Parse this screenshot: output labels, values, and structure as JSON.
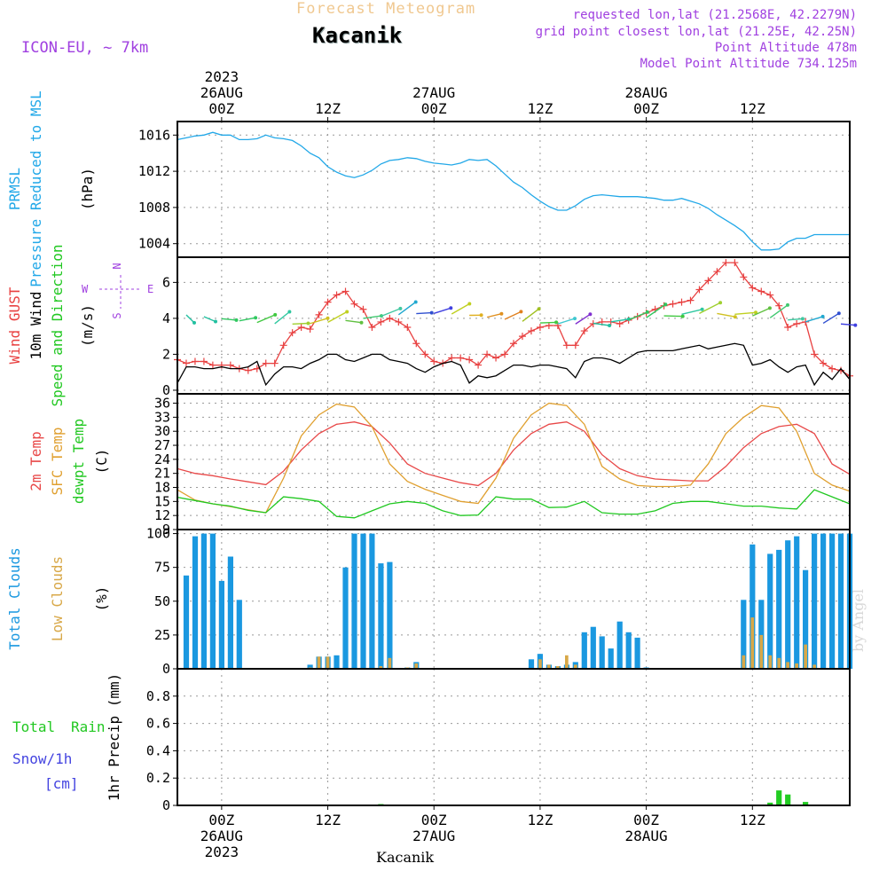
{
  "header": {
    "title": "Forecast Meteogram",
    "location": "Kacanik",
    "model": "ICON-EU, ~ 7km",
    "requested": "requested lon,lat (21.2568E, 42.2279N)",
    "grid": "grid point closest lon,lat (21.25E, 42.25N)",
    "point_alt": "Point Altitude 478m",
    "model_alt": "Model Point Altitude 734.125m",
    "watermark": "by Angel",
    "footer": "Kacanik",
    "colors": {
      "title": "#f0c080",
      "meta": "#a040e0",
      "location": "#000000"
    }
  },
  "time_axis": {
    "top_year": "2023",
    "tick_labels": [
      "00Z",
      "12Z",
      "00Z",
      "12Z",
      "00Z",
      "12Z"
    ],
    "tick_hours": [
      0,
      12,
      24,
      36,
      48,
      60
    ],
    "date_labels": [
      {
        "hour": 0,
        "text": "26AUG"
      },
      {
        "hour": 24,
        "text": "27AUG"
      },
      {
        "hour": 48,
        "text": "28AUG"
      }
    ],
    "hour_range": [
      -5,
      71
    ]
  },
  "panel_labels": {
    "pressure": [
      "PRMSL",
      "Pressure Reduced to MSL",
      "(hPa)"
    ],
    "wind": [
      "Wind GUST",
      "10m Wind",
      "Speed and Direction",
      "(m/s)"
    ],
    "compass": [
      "N",
      "W",
      "E",
      "S"
    ],
    "temp": [
      "2m Temp",
      "SFC Temp",
      "dewpt Temp",
      "(C)"
    ],
    "clouds": [
      "Total Clouds",
      "Low Clouds",
      "(%)"
    ],
    "precip": [
      "Total",
      "Rain",
      "Snow/1h",
      "[cm]",
      "1hr Precip (mm)"
    ]
  },
  "chart_data": [
    {
      "type": "line",
      "name": "pressure",
      "ylim": [
        1002.5,
        1017.5
      ],
      "yticks": [
        1004,
        1008,
        1012,
        1016
      ],
      "colors": [
        "#22a8e8"
      ],
      "series": [
        {
          "name": "PRMSL",
          "x": [
            -5,
            -4,
            -3,
            -2,
            -1,
            0,
            1,
            2,
            3,
            4,
            5,
            6,
            7,
            8,
            9,
            10,
            11,
            12,
            13,
            14,
            15,
            16,
            17,
            18,
            19,
            20,
            21,
            22,
            23,
            24,
            25,
            26,
            27,
            28,
            29,
            30,
            31,
            32,
            33,
            34,
            35,
            36,
            37,
            38,
            39,
            40,
            41,
            42,
            43,
            44,
            45,
            46,
            47,
            48,
            49,
            50,
            51,
            52,
            53,
            54,
            55,
            56,
            57,
            58,
            59,
            60,
            61,
            62,
            63,
            64,
            65,
            66,
            67,
            68,
            69,
            70,
            71
          ],
          "values": [
            1015.5,
            1015.7,
            1015.9,
            1016.0,
            1016.3,
            1016.0,
            1016.0,
            1015.5,
            1015.5,
            1015.6,
            1016.0,
            1015.7,
            1015.6,
            1015.4,
            1014.8,
            1014.0,
            1013.5,
            1012.5,
            1011.9,
            1011.5,
            1011.3,
            1011.6,
            1012.1,
            1012.8,
            1013.2,
            1013.3,
            1013.5,
            1013.4,
            1013.1,
            1012.9,
            1012.8,
            1012.7,
            1012.9,
            1013.3,
            1013.2,
            1013.3,
            1012.6,
            1011.7,
            1010.8,
            1010.2,
            1009.4,
            1008.7,
            1008.1,
            1007.7,
            1007.7,
            1008.2,
            1008.9,
            1009.3,
            1009.4,
            1009.3,
            1009.2,
            1009.2,
            1009.2,
            1009.1,
            1009.0,
            1008.8,
            1008.8,
            1009.0,
            1008.7,
            1008.4,
            1007.9,
            1007.2,
            1006.6,
            1006.0,
            1005.3,
            1004.2,
            1003.3,
            1003.3,
            1003.4,
            1004.2,
            1004.6,
            1004.6,
            1005.0,
            1005.0,
            1005.0,
            1005.0,
            1005.0
          ]
        }
      ]
    },
    {
      "type": "line",
      "name": "wind",
      "ylim": [
        -0.2,
        7.4
      ],
      "yticks": [
        0,
        2,
        4,
        6
      ],
      "colors": [
        "#e84040",
        "#000000"
      ],
      "series": [
        {
          "name": "Wind GUST",
          "x": [
            -5,
            -4,
            -3,
            -2,
            -1,
            0,
            1,
            2,
            3,
            4,
            5,
            6,
            7,
            8,
            9,
            10,
            11,
            12,
            13,
            14,
            15,
            16,
            17,
            18,
            19,
            20,
            21,
            22,
            23,
            24,
            25,
            26,
            27,
            28,
            29,
            30,
            31,
            32,
            33,
            34,
            35,
            36,
            37,
            38,
            39,
            40,
            41,
            42,
            43,
            44,
            45,
            46,
            47,
            48,
            49,
            50,
            51,
            52,
            53,
            54,
            55,
            56,
            57,
            58,
            59,
            60,
            61,
            62,
            63,
            64,
            65,
            66,
            67,
            68,
            69,
            70,
            71
          ],
          "values": [
            1.7,
            1.5,
            1.6,
            1.6,
            1.4,
            1.4,
            1.4,
            1.2,
            1.1,
            1.2,
            1.5,
            1.5,
            2.5,
            3.2,
            3.5,
            3.4,
            4.2,
            4.9,
            5.3,
            5.5,
            4.8,
            4.5,
            3.5,
            3.8,
            4.0,
            3.8,
            3.5,
            2.6,
            2.0,
            1.6,
            1.5,
            1.8,
            1.8,
            1.7,
            1.4,
            2.0,
            1.8,
            2.0,
            2.6,
            3.0,
            3.3,
            3.5,
            3.6,
            3.6,
            2.5,
            2.5,
            3.3,
            3.7,
            3.8,
            3.8,
            3.7,
            3.9,
            4.1,
            4.3,
            4.5,
            4.7,
            4.8,
            4.9,
            5.0,
            5.6,
            6.1,
            6.6,
            7.1,
            7.1,
            6.3,
            5.7,
            5.5,
            5.3,
            4.7,
            3.5,
            3.7,
            3.8,
            2.0,
            1.5,
            1.2,
            1.1,
            0.8
          ]
        },
        {
          "name": "10m Wind",
          "x": [
            -5,
            -4,
            -3,
            -2,
            -1,
            0,
            1,
            2,
            3,
            4,
            5,
            6,
            7,
            8,
            9,
            10,
            11,
            12,
            13,
            14,
            15,
            16,
            17,
            18,
            19,
            20,
            21,
            22,
            23,
            24,
            25,
            26,
            27,
            28,
            29,
            30,
            31,
            32,
            33,
            34,
            35,
            36,
            37,
            38,
            39,
            40,
            41,
            42,
            43,
            44,
            45,
            46,
            47,
            48,
            49,
            50,
            51,
            52,
            53,
            54,
            55,
            56,
            57,
            58,
            59,
            60,
            61,
            62,
            63,
            64,
            65,
            66,
            67,
            68,
            69,
            70,
            71
          ],
          "values": [
            0.4,
            1.3,
            1.3,
            1.2,
            1.2,
            1.3,
            1.2,
            1.2,
            1.3,
            1.6,
            0.3,
            0.9,
            1.3,
            1.3,
            1.2,
            1.5,
            1.7,
            2.0,
            2.0,
            1.7,
            1.6,
            1.8,
            2.0,
            2.0,
            1.7,
            1.6,
            1.5,
            1.2,
            1.0,
            1.3,
            1.5,
            1.6,
            1.4,
            0.4,
            0.8,
            0.7,
            0.8,
            1.1,
            1.4,
            1.4,
            1.3,
            1.4,
            1.4,
            1.3,
            1.2,
            0.7,
            1.6,
            1.8,
            1.8,
            1.7,
            1.5,
            1.8,
            2.1,
            2.2,
            2.2,
            2.2,
            2.2,
            2.3,
            2.4,
            2.5,
            2.3,
            2.4,
            2.5,
            2.6,
            2.5,
            1.4,
            1.5,
            1.7,
            1.3,
            1.0,
            1.3,
            1.4,
            0.3,
            1.0,
            0.6,
            1.2,
            0.6
          ]
        }
      ]
    },
    {
      "type": "line",
      "name": "temperature",
      "ylim": [
        9,
        38
      ],
      "yticks": [
        9,
        12,
        15,
        18,
        21,
        24,
        27,
        30,
        33,
        36
      ],
      "colors": [
        "#e84848",
        "#e0a030",
        "#20c820"
      ],
      "series": [
        {
          "name": "2m Temp",
          "x": [
            -5,
            -3,
            -1,
            1,
            3,
            5,
            7,
            9,
            11,
            13,
            15,
            17,
            19,
            21,
            23,
            25,
            27,
            29,
            31,
            33,
            35,
            37,
            39,
            41,
            43,
            45,
            47,
            49,
            51,
            53,
            55,
            57,
            59,
            61,
            63,
            65,
            67,
            69,
            71
          ],
          "values": [
            22.0,
            21.0,
            20.5,
            19.8,
            19.2,
            18.6,
            21.5,
            26.0,
            29.5,
            31.5,
            32.0,
            31.0,
            27.5,
            23.0,
            21.0,
            20.0,
            19.0,
            18.4,
            21.0,
            26.0,
            29.5,
            31.5,
            32.0,
            30.0,
            25.0,
            22.0,
            20.5,
            19.8,
            19.6,
            19.4,
            19.4,
            22.5,
            26.5,
            29.5,
            31.0,
            31.5,
            29.5,
            23.0,
            20.8
          ]
        },
        {
          "name": "SFC Temp",
          "x": [
            -5,
            -3,
            -1,
            1,
            3,
            5,
            7,
            9,
            11,
            13,
            15,
            17,
            19,
            21,
            23,
            25,
            27,
            29,
            31,
            33,
            35,
            37,
            39,
            41,
            43,
            45,
            47,
            49,
            51,
            53,
            55,
            57,
            59,
            61,
            63,
            65,
            67,
            69,
            71
          ],
          "values": [
            17.5,
            15.3,
            14.5,
            13.9,
            13.2,
            12.6,
            20.0,
            29.0,
            33.5,
            35.8,
            35.2,
            31.0,
            23.0,
            19.3,
            17.6,
            16.3,
            15.0,
            14.6,
            20.0,
            28.5,
            33.5,
            36.0,
            35.5,
            31.5,
            22.5,
            19.8,
            18.4,
            18.2,
            18.2,
            18.5,
            23.0,
            29.5,
            33.0,
            35.5,
            35.0,
            30.0,
            21.0,
            18.5,
            17.2
          ]
        },
        {
          "name": "dewpt Temp",
          "x": [
            -5,
            -3,
            -1,
            1,
            3,
            5,
            7,
            9,
            11,
            13,
            15,
            17,
            19,
            21,
            23,
            25,
            27,
            29,
            31,
            33,
            35,
            37,
            39,
            41,
            43,
            45,
            47,
            49,
            51,
            53,
            55,
            57,
            59,
            61,
            63,
            65,
            67,
            69,
            71
          ],
          "values": [
            15.9,
            15.2,
            14.5,
            14.0,
            13.1,
            12.6,
            16.0,
            15.6,
            15.0,
            11.8,
            11.5,
            13.0,
            14.5,
            15.0,
            14.6,
            13.0,
            12.0,
            12.1,
            16.0,
            15.5,
            15.5,
            13.7,
            13.8,
            15.0,
            12.6,
            12.3,
            12.3,
            13.0,
            14.6,
            15.0,
            15.0,
            14.5,
            14.0,
            14.0,
            13.6,
            13.4,
            17.5,
            16.0,
            14.5
          ]
        }
      ]
    },
    {
      "type": "bar",
      "name": "clouds",
      "ylim": [
        0,
        103
      ],
      "yticks": [
        0,
        25,
        50,
        75,
        100
      ],
      "colors": [
        "#1a98e0",
        "#d8a848"
      ],
      "series": [
        {
          "name": "Total Clouds",
          "x": [
            -4,
            -3,
            -2,
            -1,
            0,
            1,
            2,
            10,
            11,
            12,
            13,
            14,
            15,
            16,
            17,
            18,
            19,
            21,
            22,
            35,
            36,
            37,
            38,
            39,
            40,
            41,
            42,
            43,
            44,
            45,
            46,
            47,
            48,
            59,
            60,
            61,
            62,
            63,
            64,
            65,
            66,
            67,
            68,
            69,
            70,
            71
          ],
          "values": [
            69,
            98,
            100,
            100,
            65,
            83,
            51,
            3,
            9,
            9,
            10,
            75,
            100,
            100,
            100,
            78,
            79,
            1,
            5,
            7,
            11,
            3,
            2,
            3,
            5,
            27,
            31,
            24,
            15,
            35,
            27,
            23,
            1,
            51,
            92,
            51,
            85,
            88,
            95,
            98,
            73,
            100,
            100,
            100,
            100,
            100
          ]
        },
        {
          "name": "Low Clouds",
          "x": [
            10,
            11,
            12,
            18,
            19,
            21,
            22,
            36,
            37,
            38,
            39,
            40,
            59,
            60,
            61,
            62,
            63,
            64,
            65,
            66,
            67
          ],
          "values": [
            1,
            9,
            9,
            2,
            8,
            1,
            4,
            7,
            3,
            2,
            10,
            3,
            10,
            38,
            25,
            10,
            8,
            5,
            4,
            18,
            3
          ]
        }
      ]
    },
    {
      "type": "bar",
      "name": "precip",
      "ylim": [
        0,
        1.0
      ],
      "yticks": [
        0,
        0.2,
        0.4,
        0.6,
        0.8
      ],
      "colors": [
        "#22cc22",
        "#4444e0"
      ],
      "series": [
        {
          "name": "Total Rain",
          "x": [
            18,
            61,
            62,
            63,
            64,
            66
          ],
          "values": [
            0.01,
            0.005,
            0.02,
            0.11,
            0.08,
            0.025
          ]
        }
      ]
    }
  ]
}
